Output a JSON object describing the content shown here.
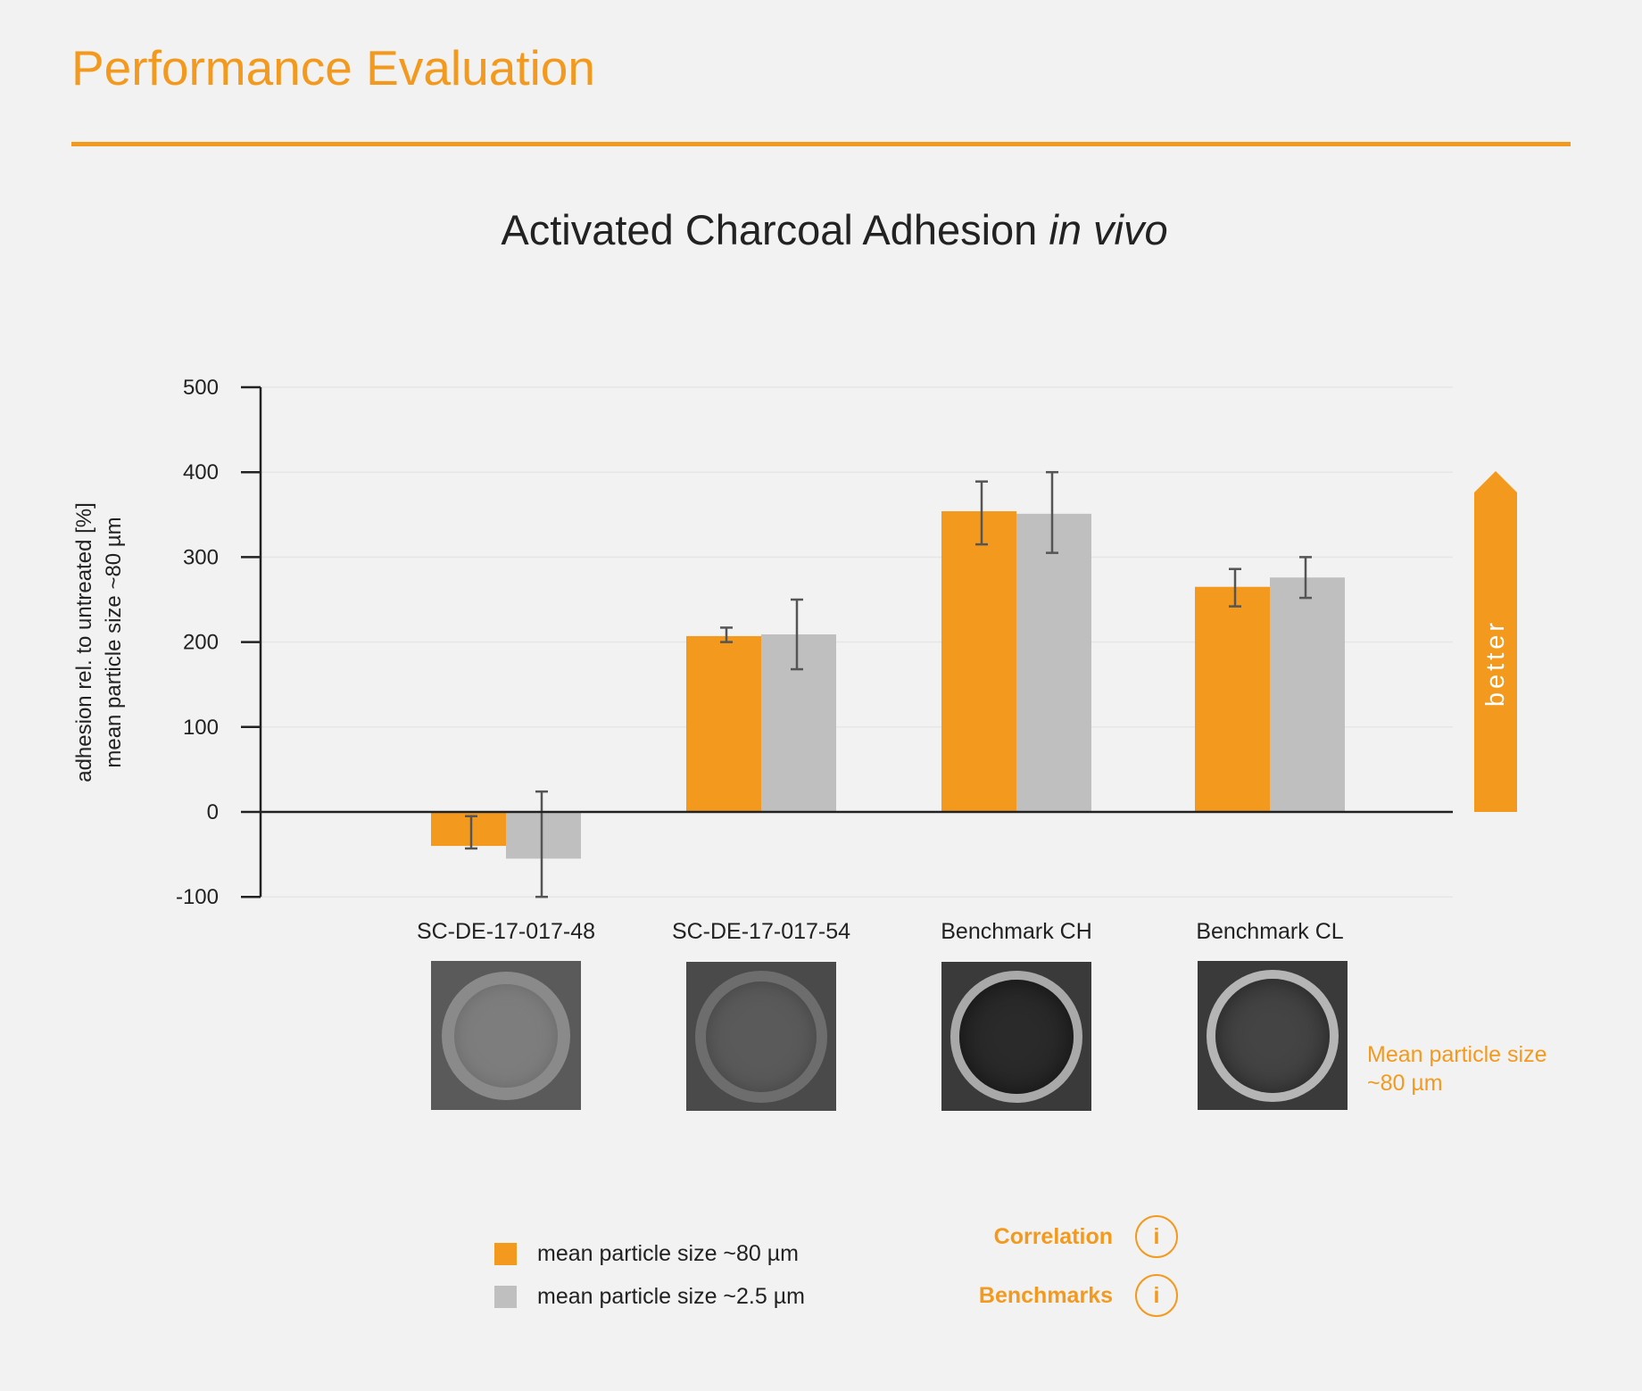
{
  "page": {
    "title": "Performance Evaluation"
  },
  "colors": {
    "accent": "#f39a1e",
    "series_80": "#f39a1e",
    "series_2_5": "#bfbfbf",
    "background": "#f2f2f2"
  },
  "chart_data": {
    "type": "bar",
    "title_main": "Activated Charcoal Adhesion ",
    "title_italic": "in vivo",
    "ylabel_line1": "adhesion rel. to untreated [%]",
    "ylabel_line2": "mean particle size ~80 µm",
    "xlabel": "",
    "ylim": [
      -100,
      500
    ],
    "yticks": [
      -100,
      0,
      100,
      200,
      300,
      400,
      500
    ],
    "categories": [
      "SC-DE-17-017-48",
      "SC-DE-17-017-54",
      "Benchmark CH",
      "Benchmark CL"
    ],
    "series": [
      {
        "name": "mean particle size ~80 µm",
        "color": "#f39a1e",
        "values": [
          -40,
          207,
          354,
          265
        ],
        "error_low": [
          -43,
          200,
          315,
          242
        ],
        "error_high": [
          -5,
          217,
          389,
          286
        ]
      },
      {
        "name": "mean particle size ~2.5 µm",
        "color": "#bfbfbf",
        "values": [
          -55,
          209,
          351,
          276
        ],
        "error_low": [
          -100,
          168,
          305,
          252
        ],
        "error_high": [
          24,
          250,
          400,
          300
        ]
      }
    ],
    "grid": true,
    "legend_position": "bottom-left",
    "annotation_arrow": "better"
  },
  "thumbnails": {
    "note": "Mean particle size\n~80 µm",
    "note_line1": "Mean particle size",
    "note_line2": "~80 µm"
  },
  "info_links": [
    {
      "label": "Correlation",
      "icon": "i"
    },
    {
      "label": "Benchmarks",
      "icon": "i"
    }
  ]
}
